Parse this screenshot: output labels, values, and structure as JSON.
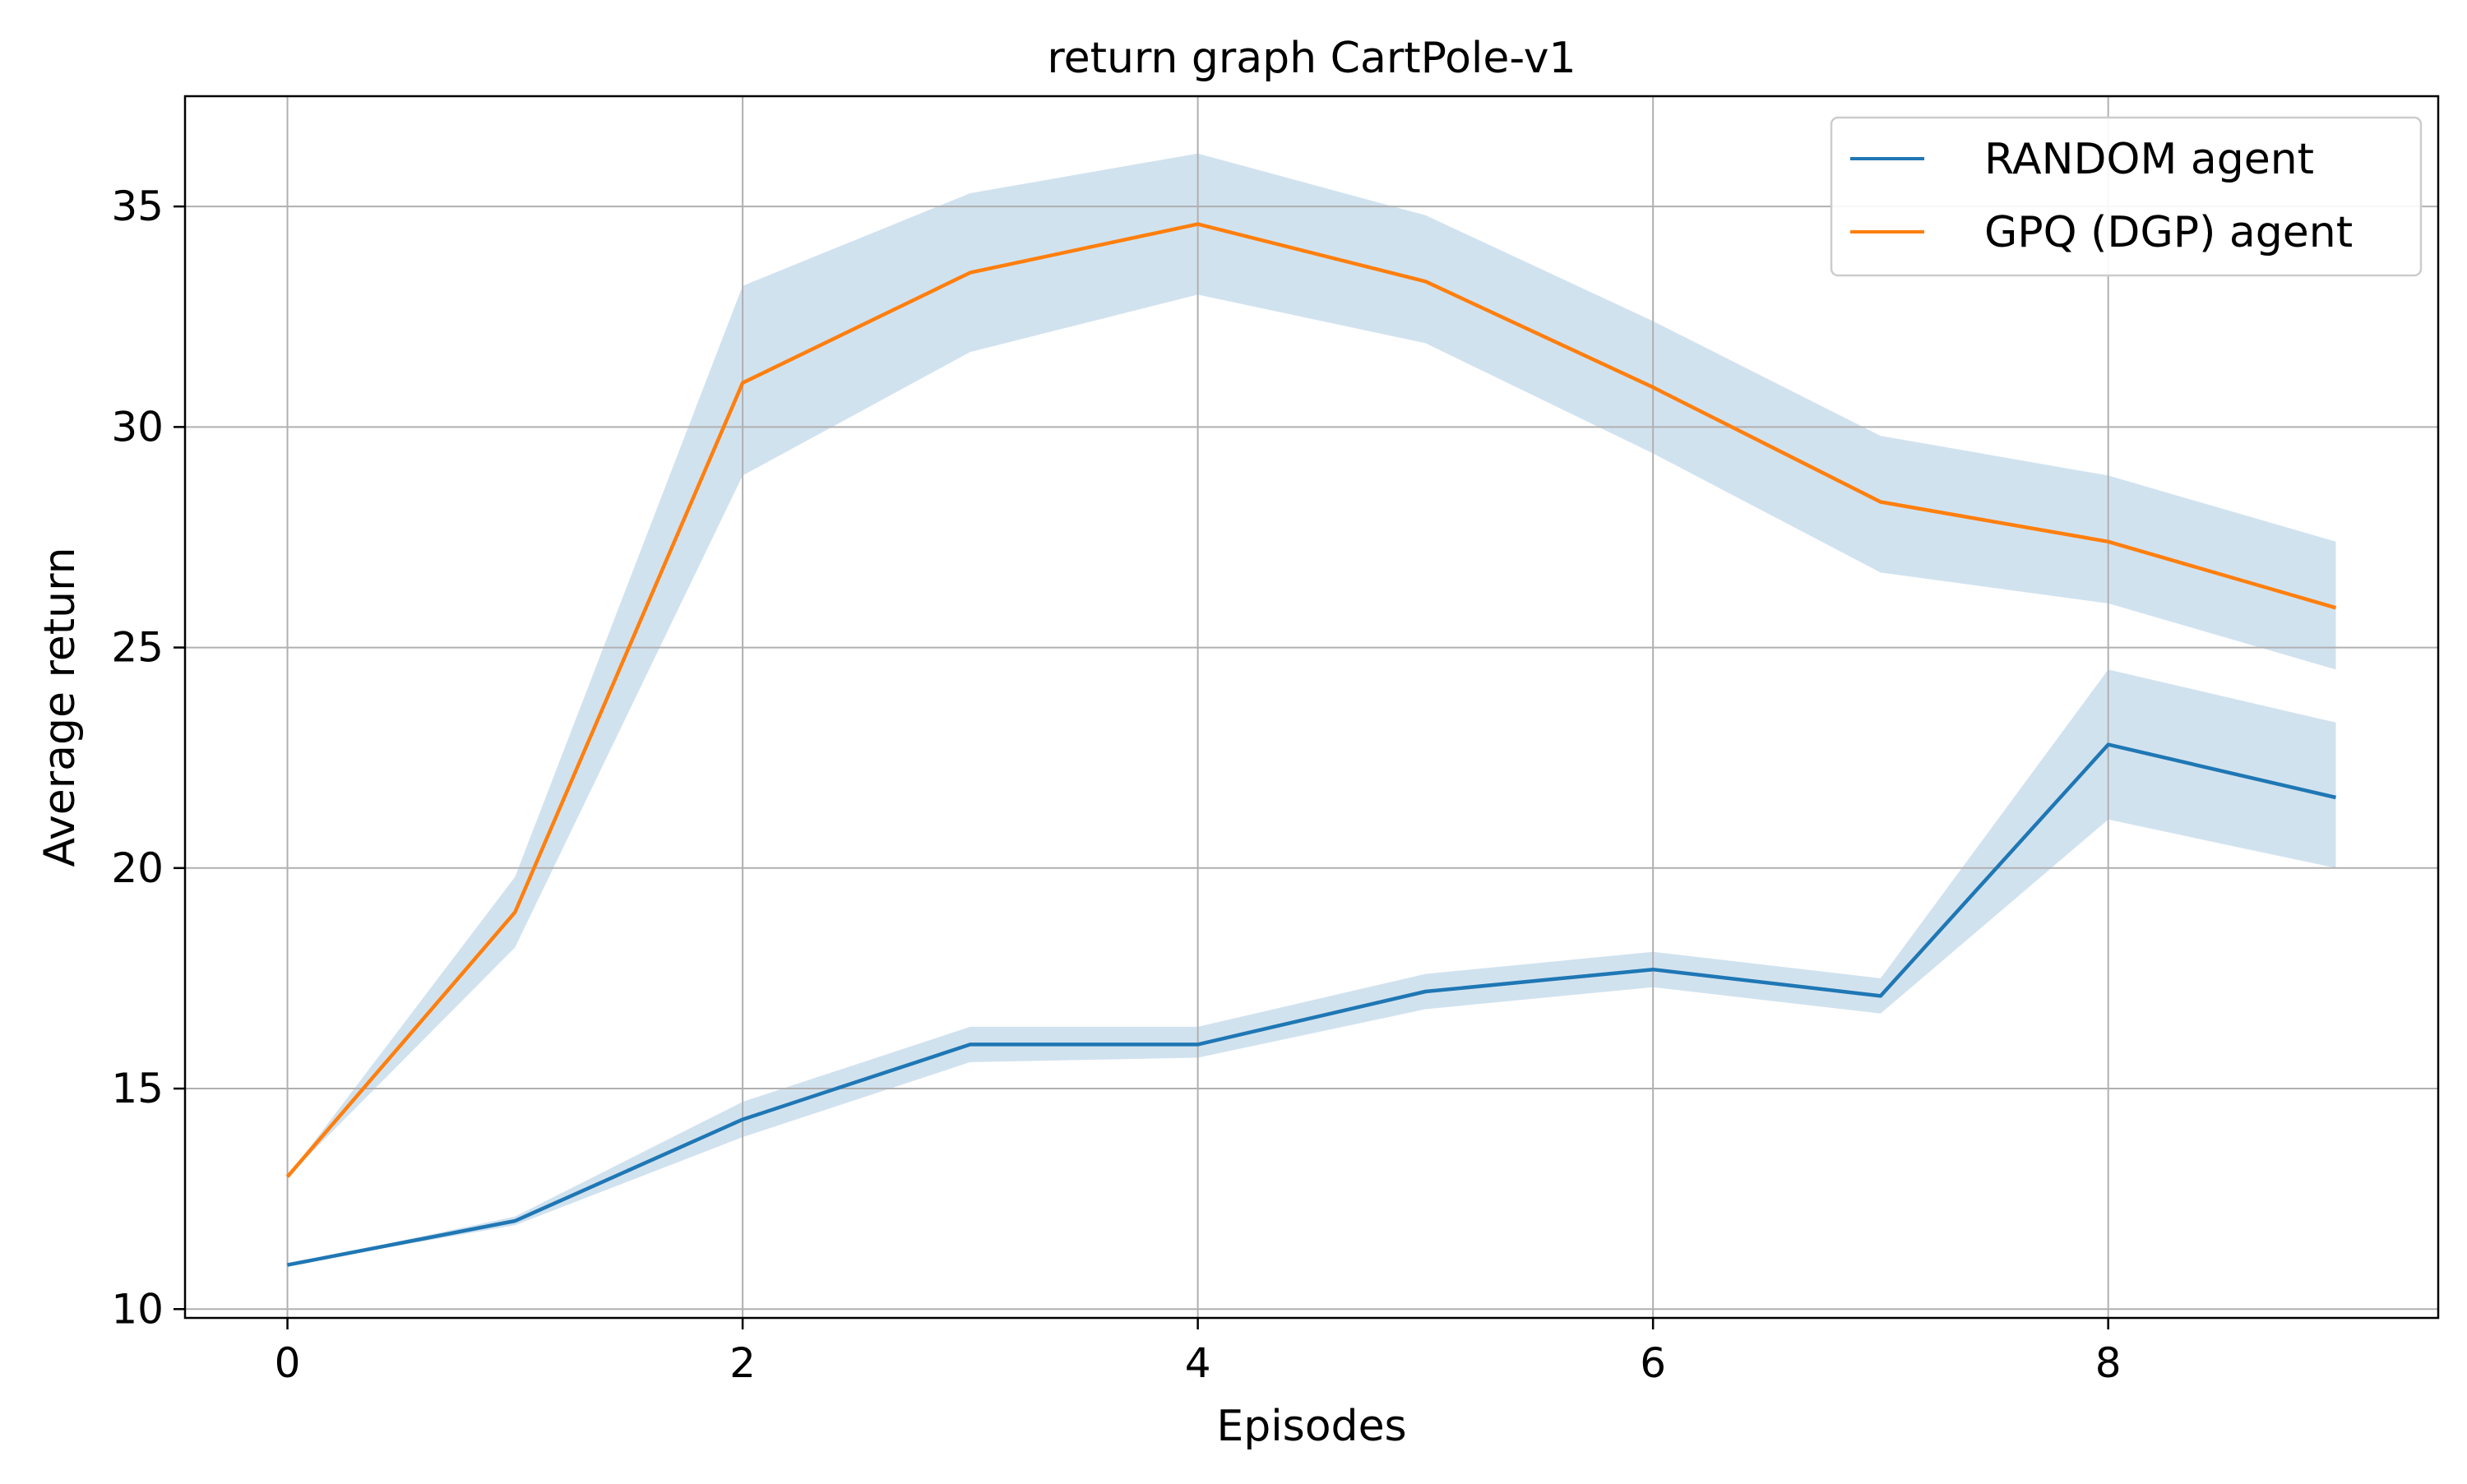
{
  "chart_data": {
    "type": "line",
    "title": "return graph CartPole-v1",
    "xlabel": "Episodes",
    "ylabel": "Average return",
    "x": [
      0,
      1,
      2,
      3,
      4,
      5,
      6,
      7,
      8,
      9
    ],
    "xlim": [
      -0.45,
      9.45
    ],
    "ylim": [
      9.8,
      37.5
    ],
    "xticks": [
      0,
      2,
      4,
      6,
      8
    ],
    "yticks": [
      10,
      15,
      20,
      25,
      30,
      35
    ],
    "grid": true,
    "legend_position": "top-right",
    "series": [
      {
        "name": "RANDOM agent",
        "color": "#1f77b4",
        "values": [
          11.0,
          12.0,
          14.3,
          16.0,
          16.0,
          17.2,
          17.7,
          17.1,
          22.8,
          21.6
        ],
        "band_lower": [
          11.0,
          11.9,
          13.9,
          15.6,
          15.7,
          16.8,
          17.3,
          16.7,
          21.1,
          20.0
        ],
        "band_upper": [
          11.0,
          12.1,
          14.7,
          16.4,
          16.4,
          17.6,
          18.1,
          17.5,
          24.5,
          23.3
        ]
      },
      {
        "name": "GPQ (DGP) agent",
        "color": "#ff7f0e",
        "values": [
          13.0,
          19.0,
          31.0,
          33.5,
          34.6,
          33.3,
          30.9,
          28.3,
          27.4,
          25.9
        ],
        "band_lower": [
          13.0,
          18.2,
          28.9,
          31.7,
          33.0,
          31.9,
          29.4,
          26.7,
          26.0,
          24.5
        ],
        "band_upper": [
          13.0,
          19.8,
          33.2,
          35.3,
          36.2,
          34.8,
          32.4,
          29.8,
          28.9,
          27.4
        ]
      }
    ],
    "band_color": "#b3cfe5"
  }
}
